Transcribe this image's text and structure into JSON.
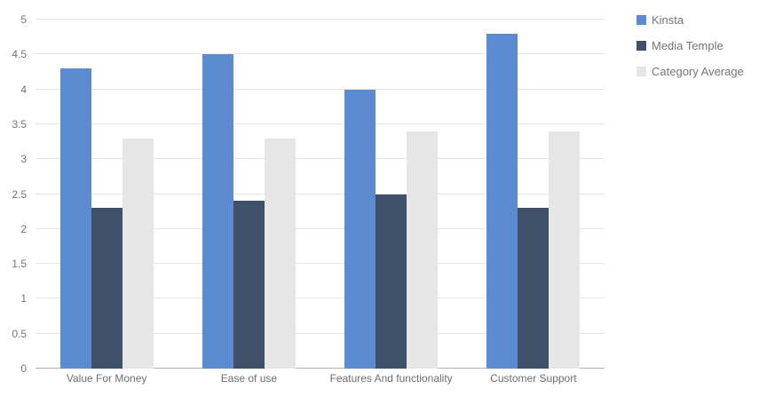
{
  "chart_data": {
    "type": "bar",
    "title": "",
    "categories": [
      "Value For Money",
      "Ease of use",
      "Features And functionality",
      "Customer Support"
    ],
    "series": [
      {
        "name": "Kinsta",
        "color": "#5b8bd0",
        "textured": false,
        "values": [
          4.3,
          4.5,
          4.0,
          4.8
        ]
      },
      {
        "name": "Media Temple",
        "color": "#3e5168",
        "textured": "dark",
        "values": [
          2.3,
          2.4,
          2.5,
          2.3
        ]
      },
      {
        "name": "Category Average",
        "color": "#e6e6e6",
        "textured": "light",
        "values": [
          3.3,
          3.3,
          3.4,
          3.4
        ]
      }
    ],
    "ylim": [
      0,
      5
    ],
    "ytick_step": 0.5,
    "ytick_labels": [
      "0",
      "0.5",
      "1",
      "1.5",
      "2",
      "2.5",
      "3",
      "3.5",
      "4",
      "4.5",
      "5"
    ],
    "xlabel": "",
    "ylabel": "",
    "grid": true,
    "legend_position": "top-right"
  },
  "colors": {
    "gridline": "#e6e6e6",
    "baseline": "#b5b5b5",
    "axis_text": "#757575",
    "category_text": "#6d6d6d",
    "legend_text": "#757575",
    "background": "#ffffff"
  }
}
